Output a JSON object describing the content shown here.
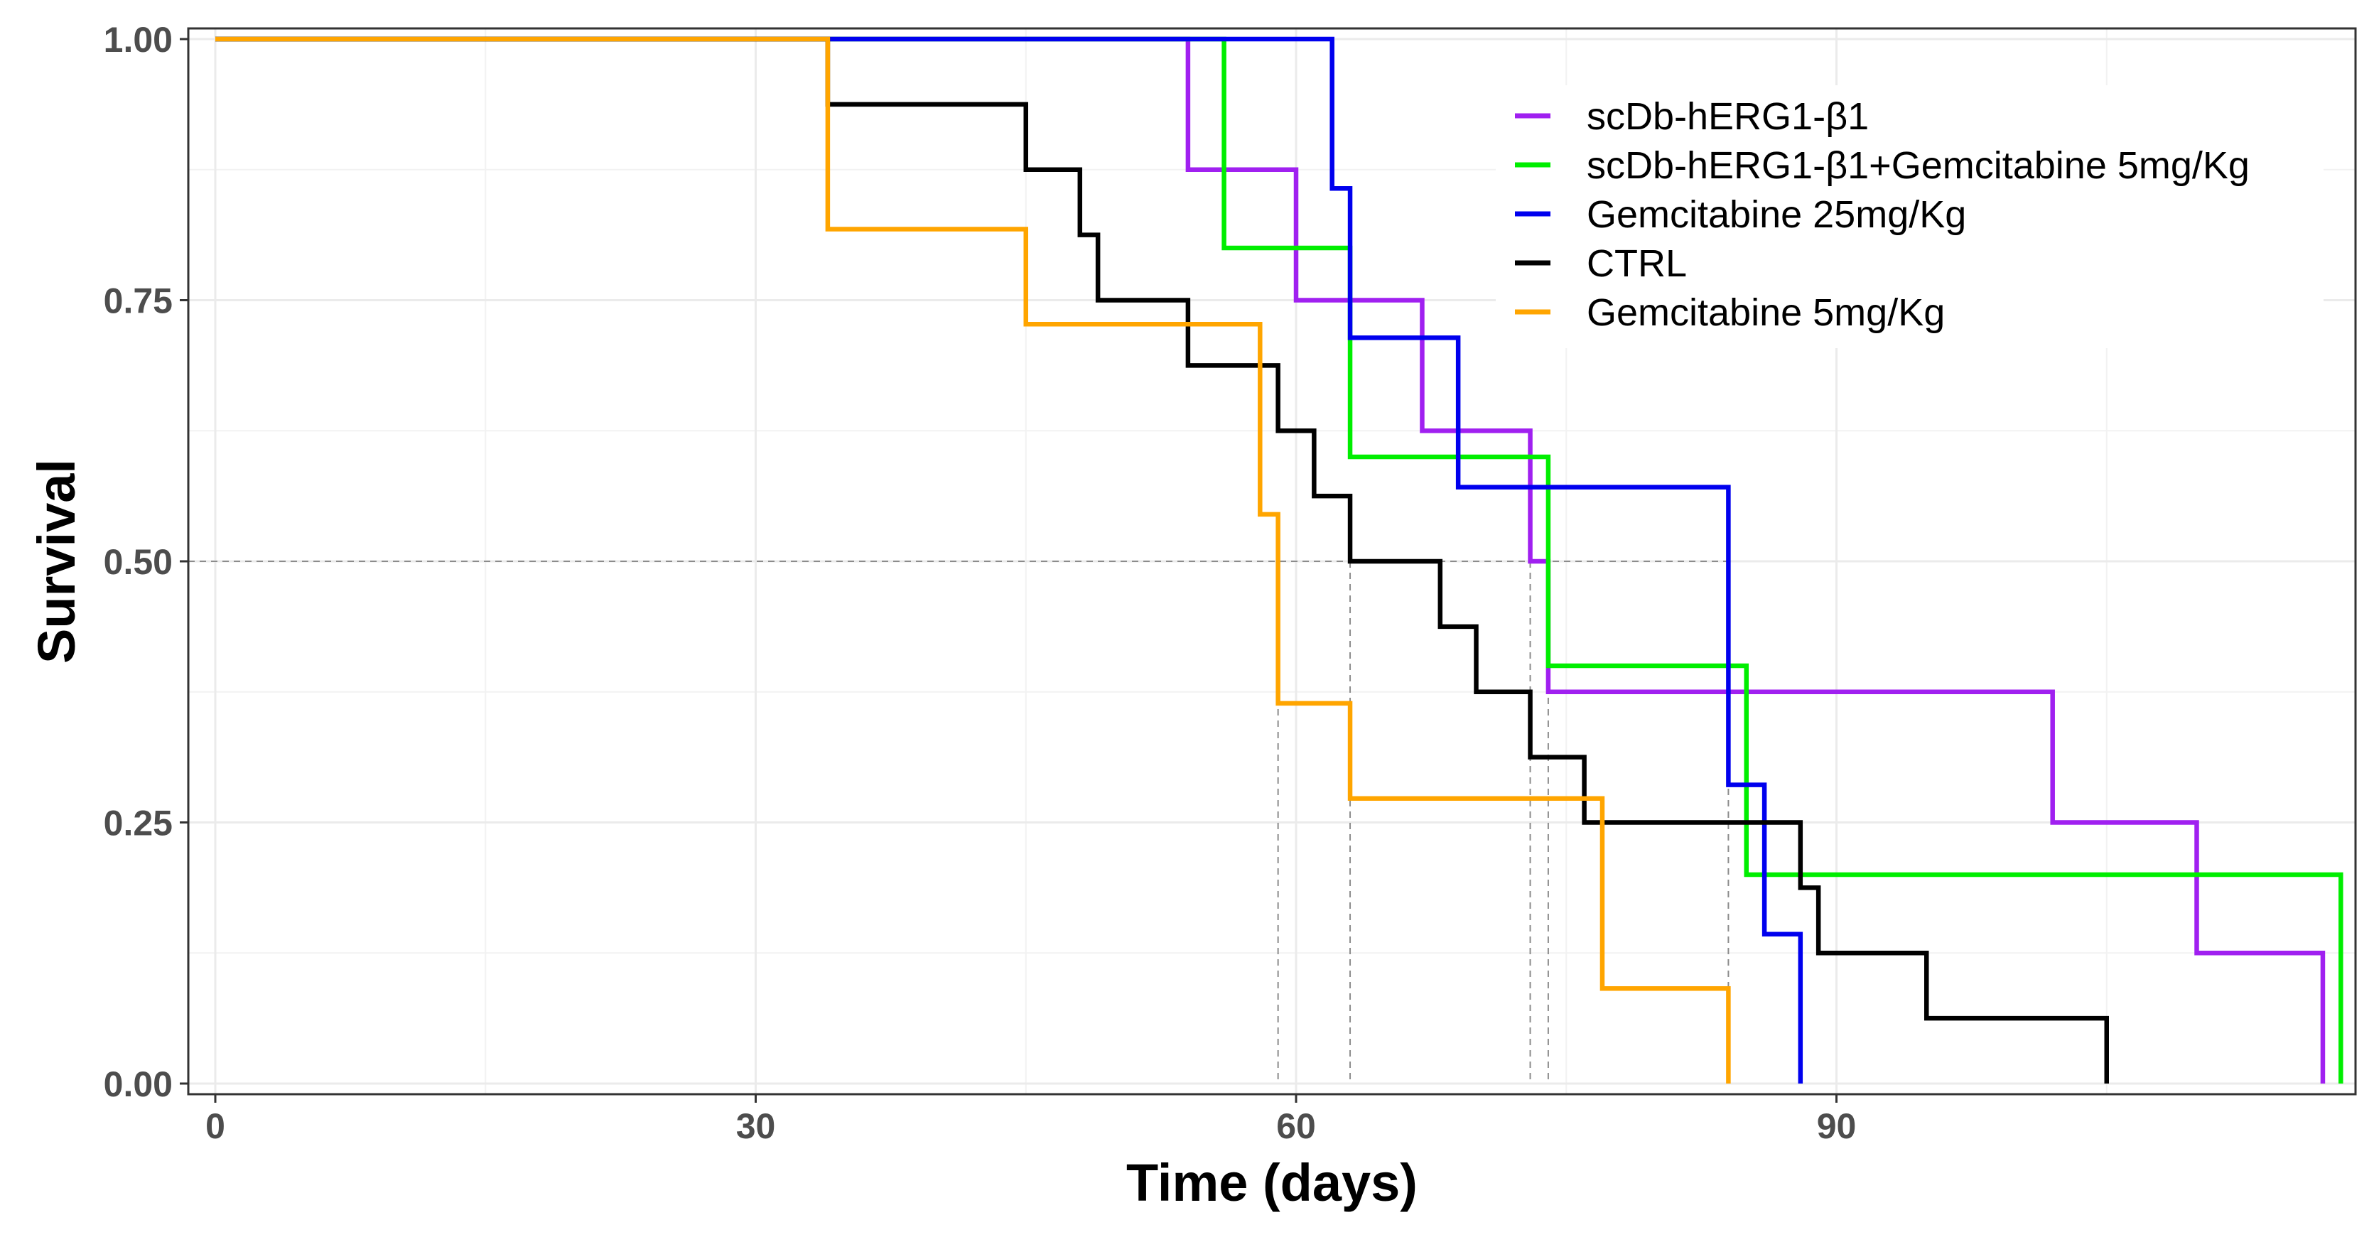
{
  "chart_data": {
    "type": "line",
    "subtype": "kaplan-meier-step",
    "xlabel": "Time (days)",
    "ylabel": "Survival",
    "xlim": [
      0,
      118
    ],
    "ylim": [
      0,
      1
    ],
    "xticks": [
      0,
      30,
      60,
      90
    ],
    "yticks": [
      0.0,
      0.25,
      0.5,
      0.75,
      1.0
    ],
    "xtick_labels": [
      "0",
      "30",
      "60",
      "90"
    ],
    "ytick_labels": [
      "0.00",
      "0.25",
      "0.50",
      "0.75",
      "1.00"
    ],
    "grid": true,
    "legend_position": "top-right",
    "median_reference_line": 0.5,
    "median_drops": [
      59,
      63,
      73,
      74,
      84
    ],
    "series": [
      {
        "name": "scDb-hERG1-β1",
        "color": "#a020f0",
        "steps": [
          [
            0,
            1.0
          ],
          [
            54,
            0.875
          ],
          [
            60,
            0.75
          ],
          [
            67,
            0.625
          ],
          [
            73,
            0.5
          ],
          [
            74,
            0.375
          ],
          [
            102,
            0.25
          ],
          [
            110,
            0.125
          ],
          [
            117,
            0.0
          ]
        ]
      },
      {
        "name": "scDb-hERG1-β1+Gemcitabine 5mg/Kg",
        "color": "#00ee00",
        "steps": [
          [
            0,
            1.0
          ],
          [
            56,
            0.8
          ],
          [
            63,
            0.6
          ],
          [
            74,
            0.4
          ],
          [
            85,
            0.2
          ],
          [
            118,
            0.0
          ]
        ]
      },
      {
        "name": "Gemcitabine 25mg/Kg",
        "color": "#0000ee",
        "steps": [
          [
            0,
            1.0
          ],
          [
            62,
            0.857
          ],
          [
            63,
            0.714
          ],
          [
            69,
            0.571
          ],
          [
            84,
            0.286
          ],
          [
            86,
            0.143
          ],
          [
            88,
            0.0
          ]
        ]
      },
      {
        "name": "CTRL",
        "color": "#000000",
        "steps": [
          [
            0,
            1.0
          ],
          [
            34,
            0.9375
          ],
          [
            45,
            0.875
          ],
          [
            48,
            0.8125
          ],
          [
            49,
            0.75
          ],
          [
            54,
            0.6875
          ],
          [
            59,
            0.625
          ],
          [
            61,
            0.5625
          ],
          [
            63,
            0.5
          ],
          [
            68,
            0.4375
          ],
          [
            70,
            0.375
          ],
          [
            73,
            0.3125
          ],
          [
            76,
            0.25
          ],
          [
            88,
            0.1875
          ],
          [
            89,
            0.125
          ],
          [
            95,
            0.0625
          ],
          [
            105,
            0.0
          ]
        ]
      },
      {
        "name": "Gemcitabine 5mg/Kg",
        "color": "#ffa500",
        "steps": [
          [
            0,
            1.0
          ],
          [
            34,
            0.818
          ],
          [
            45,
            0.727
          ],
          [
            58,
            0.545
          ],
          [
            59,
            0.364
          ],
          [
            63,
            0.273
          ],
          [
            77,
            0.091
          ],
          [
            84,
            0.0
          ]
        ]
      }
    ]
  }
}
